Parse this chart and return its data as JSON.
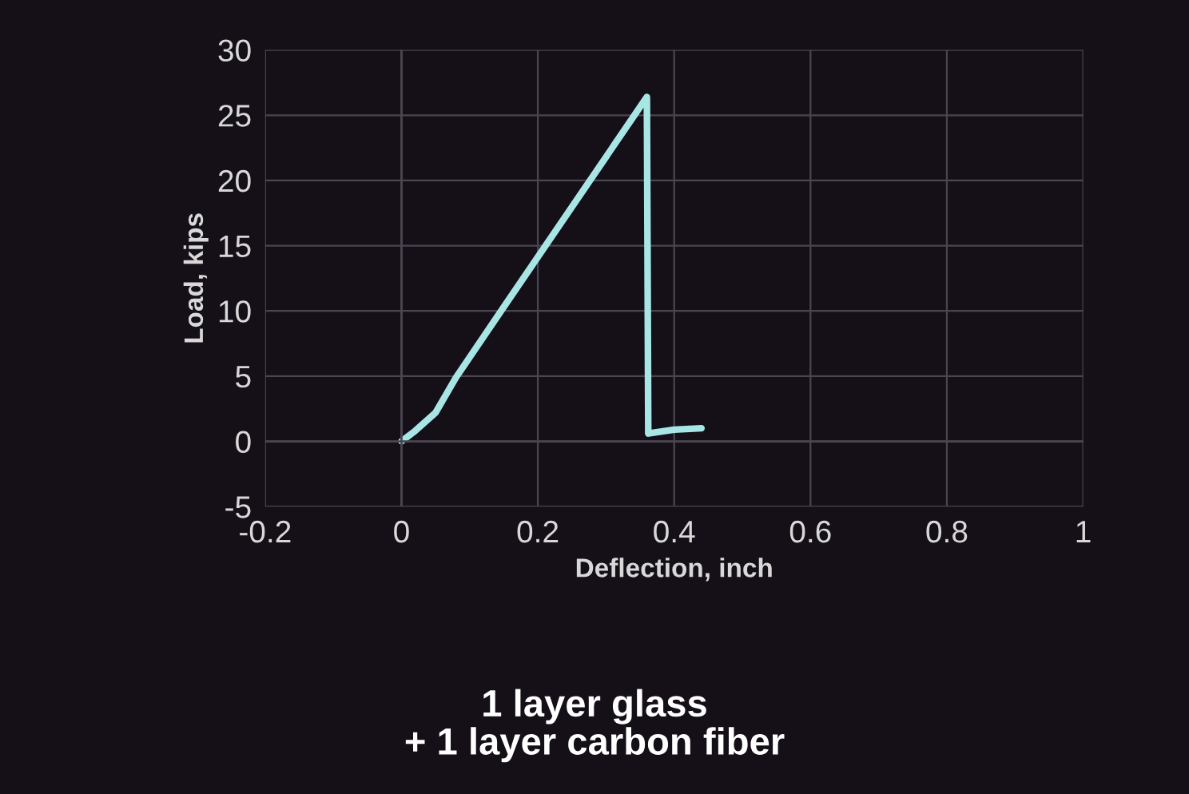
{
  "chart_data": {
    "type": "line",
    "title": "1 layer glass\n+ 1 layer carbon fiber",
    "xlabel": "Deflection, inch",
    "ylabel": "Load, kips",
    "series": [
      {
        "color": "#a8e6e6",
        "x": [
          0,
          0.02,
          0.05,
          0.08,
          0.15,
          0.36,
          0.362,
          0.4,
          0.44
        ],
        "values": [
          0,
          0.8,
          2.2,
          4.9,
          10.3,
          26.4,
          0.6,
          0.9,
          1.0
        ]
      }
    ],
    "xlim": [
      -0.2,
      1
    ],
    "ylim": [
      -5,
      30
    ],
    "xticks": [
      -0.2,
      0,
      0.2,
      0.4,
      0.6,
      0.8,
      1
    ],
    "yticks": [
      -5,
      0,
      5,
      10,
      15,
      20,
      25,
      30
    ],
    "grid": true,
    "marker": "none",
    "line_style": "solid"
  }
}
